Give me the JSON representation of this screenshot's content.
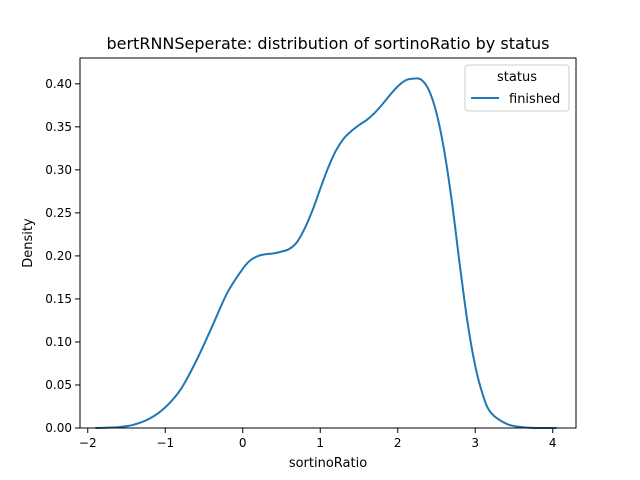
{
  "chart_data": {
    "type": "line",
    "title": "bertRNNSeperate: distribution of sortinoRatio by status",
    "xlabel": "sortinoRatio",
    "ylabel": "Density",
    "xlim": [
      -2.1,
      4.3
    ],
    "ylim": [
      0,
      0.43
    ],
    "xticks": [
      -2,
      -1,
      0,
      1,
      2,
      3,
      4
    ],
    "yticks": [
      0.0,
      0.05,
      0.1,
      0.15,
      0.2,
      0.25,
      0.3,
      0.35,
      0.4
    ],
    "xtick_labels": [
      "−2",
      "−1",
      "0",
      "1",
      "2",
      "3",
      "4"
    ],
    "ytick_labels": [
      "0.00",
      "0.05",
      "0.10",
      "0.15",
      "0.20",
      "0.25",
      "0.30",
      "0.35",
      "0.40"
    ],
    "grid": false,
    "legend": {
      "title": "status",
      "position": "top-right"
    },
    "series": [
      {
        "name": "finished",
        "color": "#1f77b4",
        "x": [
          -1.9,
          -1.6,
          -1.4,
          -1.2,
          -1.0,
          -0.8,
          -0.6,
          -0.4,
          -0.2,
          0.0,
          0.1,
          0.2,
          0.3,
          0.4,
          0.5,
          0.6,
          0.7,
          0.8,
          0.9,
          1.0,
          1.1,
          1.2,
          1.3,
          1.4,
          1.5,
          1.6,
          1.7,
          1.8,
          1.9,
          2.0,
          2.1,
          2.2,
          2.3,
          2.4,
          2.5,
          2.6,
          2.7,
          2.8,
          2.9,
          3.0,
          3.1,
          3.2,
          3.4,
          3.6,
          3.8,
          4.05
        ],
        "y": [
          0.0,
          0.001,
          0.004,
          0.011,
          0.024,
          0.045,
          0.078,
          0.117,
          0.157,
          0.185,
          0.195,
          0.2,
          0.202,
          0.203,
          0.205,
          0.208,
          0.216,
          0.232,
          0.253,
          0.278,
          0.302,
          0.322,
          0.336,
          0.345,
          0.352,
          0.358,
          0.366,
          0.376,
          0.387,
          0.397,
          0.404,
          0.406,
          0.405,
          0.393,
          0.366,
          0.322,
          0.262,
          0.19,
          0.123,
          0.072,
          0.038,
          0.018,
          0.005,
          0.001,
          0.0,
          0.0
        ]
      }
    ]
  }
}
